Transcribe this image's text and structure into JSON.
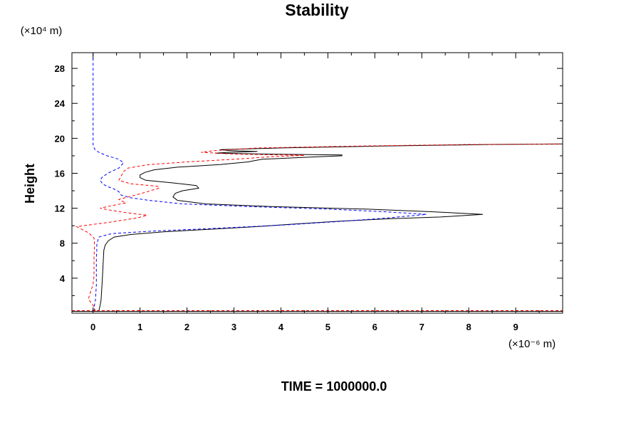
{
  "chart_data": {
    "type": "line",
    "title": "Stability",
    "ylabel": "Height",
    "y_unit": "(×10⁴ m)",
    "x_unit": "(×10⁻⁶ m)",
    "footer": "TIME = 1000000.0",
    "xlim": [
      -0.45,
      10.0
    ],
    "ylim": [
      0,
      29.8
    ],
    "x_ticks": [
      0,
      1,
      2,
      3,
      4,
      5,
      6,
      7,
      8,
      9
    ],
    "x_tick_labels": [
      "0",
      "1",
      "2",
      "3",
      "4",
      "5",
      "6",
      "7",
      "8",
      "9"
    ],
    "y_ticks": [
      4,
      8,
      12,
      16,
      20,
      24,
      28
    ],
    "y_tick_labels": [
      "4",
      "8",
      "12",
      "16",
      "20",
      "24",
      "28"
    ],
    "grid": false,
    "series": [
      {
        "color": "#000000",
        "style": "solid",
        "points": [
          [
            0.12,
            0.2
          ],
          [
            0.15,
            0.9
          ],
          [
            0.17,
            1.5
          ],
          [
            0.18,
            2.3
          ],
          [
            0.19,
            3.2
          ],
          [
            0.2,
            4.2
          ],
          [
            0.21,
            5.2
          ],
          [
            0.22,
            6.3
          ],
          [
            0.23,
            7.2
          ],
          [
            0.26,
            7.8
          ],
          [
            0.33,
            8.3
          ],
          [
            0.45,
            8.7
          ],
          [
            0.8,
            9.0
          ],
          [
            1.5,
            9.3
          ],
          [
            2.5,
            9.6
          ],
          [
            3.5,
            9.9
          ],
          [
            4.3,
            10.2
          ],
          [
            5.2,
            10.5
          ],
          [
            6.3,
            10.8
          ],
          [
            7.4,
            11.0
          ],
          [
            8.3,
            11.3
          ],
          [
            7.2,
            11.6
          ],
          [
            5.8,
            11.9
          ],
          [
            3.8,
            12.2
          ],
          [
            2.4,
            12.5
          ],
          [
            1.8,
            12.9
          ],
          [
            1.7,
            13.3
          ],
          [
            1.75,
            13.7
          ],
          [
            1.9,
            14.0
          ],
          [
            2.25,
            14.3
          ],
          [
            2.2,
            14.6
          ],
          [
            1.7,
            14.9
          ],
          [
            1.12,
            15.2
          ],
          [
            1.0,
            15.5
          ],
          [
            1.0,
            15.8
          ],
          [
            1.1,
            16.1
          ],
          [
            1.3,
            16.4
          ],
          [
            1.8,
            16.7
          ],
          [
            2.7,
            17.0
          ],
          [
            3.3,
            17.3
          ],
          [
            3.6,
            17.6
          ],
          [
            4.4,
            17.8
          ],
          [
            5.3,
            18.0
          ],
          [
            5.3,
            18.1
          ],
          [
            3.7,
            18.2
          ],
          [
            2.6,
            18.3
          ],
          [
            2.9,
            18.4
          ],
          [
            3.5,
            18.5
          ],
          [
            2.9,
            18.6
          ],
          [
            2.7,
            18.7
          ],
          [
            4.0,
            18.9
          ],
          [
            6.0,
            19.1
          ],
          [
            8.5,
            19.3
          ],
          [
            10.0,
            19.35
          ]
        ]
      },
      {
        "color": "#0000ff",
        "style": "dashed",
        "points": [
          [
            0.02,
            0.2
          ],
          [
            0.03,
            0.9
          ],
          [
            0.05,
            1.5
          ],
          [
            0.06,
            2.3
          ],
          [
            0.07,
            3.2
          ],
          [
            0.07,
            4.2
          ],
          [
            0.07,
            5.2
          ],
          [
            0.07,
            6.3
          ],
          [
            0.08,
            7.2
          ],
          [
            0.08,
            7.8
          ],
          [
            0.1,
            8.3
          ],
          [
            0.12,
            8.7
          ],
          [
            0.4,
            9.1
          ],
          [
            1.3,
            9.4
          ],
          [
            2.6,
            9.7
          ],
          [
            4.1,
            10.1
          ],
          [
            5.3,
            10.5
          ],
          [
            6.3,
            10.9
          ],
          [
            7.1,
            11.3
          ],
          [
            6.2,
            11.6
          ],
          [
            5.0,
            11.9
          ],
          [
            3.3,
            12.2
          ],
          [
            1.9,
            12.5
          ],
          [
            1.2,
            12.9
          ],
          [
            0.8,
            13.2
          ],
          [
            0.6,
            13.5
          ],
          [
            0.55,
            13.9
          ],
          [
            0.45,
            14.2
          ],
          [
            0.3,
            14.5
          ],
          [
            0.2,
            14.8
          ],
          [
            0.15,
            15.2
          ],
          [
            0.2,
            15.6
          ],
          [
            0.35,
            16.1
          ],
          [
            0.55,
            16.6
          ],
          [
            0.65,
            17.2
          ],
          [
            0.55,
            17.6
          ],
          [
            0.3,
            18.0
          ],
          [
            0.12,
            18.4
          ],
          [
            0.03,
            18.8
          ],
          [
            0.0,
            19.3
          ],
          [
            0.0,
            22.0
          ],
          [
            0.0,
            26.0
          ],
          [
            0.0,
            29.8
          ]
        ]
      },
      {
        "color": "#ff0000",
        "style": "dashed",
        "points": [
          [
            0.05,
            0.2
          ],
          [
            0.0,
            0.9
          ],
          [
            -0.1,
            1.6
          ],
          [
            -0.05,
            2.5
          ],
          [
            0.0,
            3.3
          ],
          [
            0.02,
            4.2
          ],
          [
            0.02,
            5.3
          ],
          [
            0.02,
            6.4
          ],
          [
            0.03,
            7.3
          ],
          [
            0.03,
            8.0
          ],
          [
            0.02,
            8.6
          ],
          [
            -0.1,
            9.2
          ],
          [
            -0.35,
            9.9
          ],
          [
            0.35,
            10.4
          ],
          [
            0.95,
            10.9
          ],
          [
            1.15,
            11.2
          ],
          [
            0.7,
            11.5
          ],
          [
            0.35,
            11.8
          ],
          [
            0.15,
            12.0
          ],
          [
            0.4,
            12.3
          ],
          [
            0.7,
            12.6
          ],
          [
            0.55,
            13.0
          ],
          [
            0.75,
            13.3
          ],
          [
            1.1,
            13.8
          ],
          [
            1.4,
            14.3
          ],
          [
            1.4,
            14.5
          ],
          [
            0.8,
            14.8
          ],
          [
            0.55,
            15.2
          ],
          [
            0.6,
            15.7
          ],
          [
            0.65,
            16.2
          ],
          [
            0.75,
            16.6
          ],
          [
            1.2,
            17.0
          ],
          [
            2.0,
            17.3
          ],
          [
            3.0,
            17.6
          ],
          [
            3.8,
            17.9
          ],
          [
            4.5,
            18.05
          ],
          [
            3.0,
            18.2
          ],
          [
            2.3,
            18.4
          ],
          [
            2.6,
            18.6
          ],
          [
            3.5,
            18.9
          ],
          [
            5.5,
            19.1
          ],
          [
            8.0,
            19.3
          ],
          [
            10.0,
            19.35
          ]
        ]
      }
    ],
    "reference_lines": [
      {
        "color": "#000000",
        "style": "solid",
        "y": 0.2
      },
      {
        "color": "#ff0000",
        "style": "dashed",
        "y": 0.2
      }
    ]
  }
}
